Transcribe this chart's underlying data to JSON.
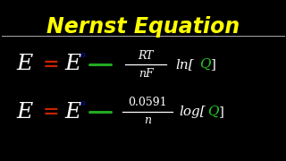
{
  "background_color": "#000000",
  "title": "Nernst Equation",
  "title_color": "#FFFF00",
  "title_fontsize": 17,
  "divider_color": "#AAAAAA",
  "eq1": {
    "E_color": "#FFFFFF",
    "equals_color": "#CC2200",
    "E0_color": "#FFFFFF",
    "superscript_color": "#1111CC",
    "minus_color": "#22AA22",
    "fraction_color": "#FFFFFF",
    "log_color": "#FFFFFF",
    "bracket_color": "#FFFFFF",
    "Q_color": "#22CC22",
    "numerator": "RT",
    "denominator": "nF",
    "log_pre": "ln["
  },
  "eq2": {
    "E_color": "#FFFFFF",
    "equals_color": "#CC2200",
    "E0_color": "#FFFFFF",
    "superscript_color": "#1111CC",
    "minus_color": "#22AA22",
    "fraction_color": "#FFFFFF",
    "log_color": "#FFFFFF",
    "bracket_color": "#FFFFFF",
    "Q_color": "#22CC22",
    "numerator": "0.0591",
    "denominator": "n",
    "log_pre": "log["
  },
  "figwidth": 3.2,
  "figheight": 1.8,
  "dpi": 100
}
